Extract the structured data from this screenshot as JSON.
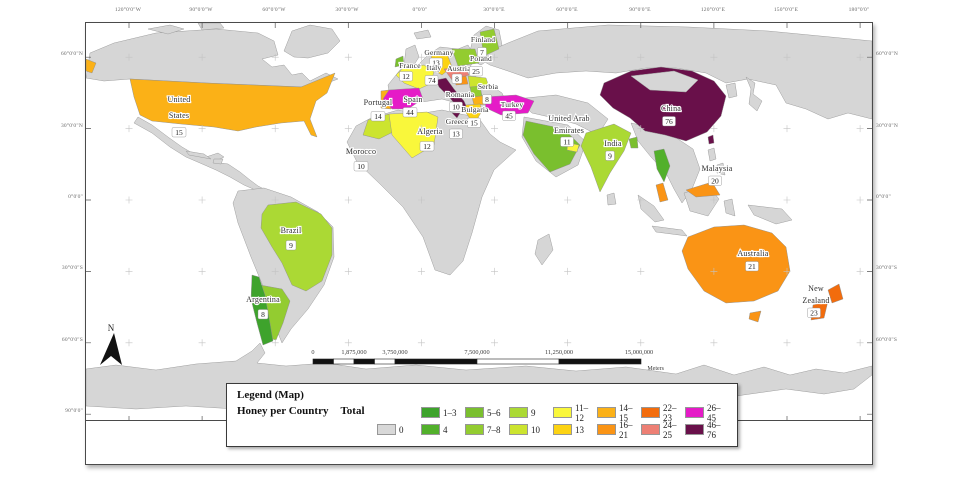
{
  "colors": {
    "land": "#D6D6D6",
    "ocean": "#FFFFFF"
  },
  "north_arrow": {
    "label": "N"
  },
  "scalebar": {
    "labels": [
      "0",
      "1,875,000",
      "3,750,000",
      "7,500,000",
      "11,250,000",
      "15,000,000"
    ],
    "unit": "Meters"
  },
  "legend": {
    "title": "Legend (Map)",
    "layer": "Honey per Country",
    "field": "Total",
    "classes": [
      {
        "label": "0",
        "color": "#D8D8D8"
      },
      {
        "label": "1–3",
        "color": "#3EA32C"
      },
      {
        "label": "4",
        "color": "#52B02B"
      },
      {
        "label": "5–6",
        "color": "#7ABF2E"
      },
      {
        "label": "7–8",
        "color": "#93CC30"
      },
      {
        "label": "9",
        "color": "#ABD934"
      },
      {
        "label": "10",
        "color": "#CCE42F"
      },
      {
        "label": "11–12",
        "color": "#F9F73B"
      },
      {
        "label": "13",
        "color": "#FCD313"
      },
      {
        "label": "14–15",
        "color": "#FBB117"
      },
      {
        "label": "16–21",
        "color": "#FA9415"
      },
      {
        "label": "22–23",
        "color": "#F26C0D"
      },
      {
        "label": "24–25",
        "color": "#ED7F74"
      },
      {
        "label": "26–45",
        "color": "#E51BC7"
      },
      {
        "label": "46–76",
        "color": "#69104A"
      }
    ]
  },
  "graticule": {
    "top": [
      "120°0'0\"W",
      "90°0'0\"W",
      "60°0'0\"W",
      "30°0'0\"W",
      "0°0'0\"",
      "30°0'0\"E",
      "60°0'0\"E",
      "90°0'0\"E",
      "120°0'0\"E",
      "150°0'0\"E",
      "180°0'0\""
    ],
    "bottom": [
      "120°0'0\"W",
      "90°0'0\"W",
      "150°0'0\"E",
      "180°0'0\""
    ],
    "left": [
      "60°0'0\"N",
      "30°0'0\"N",
      "0°0'0\"",
      "30°0'0\"S",
      "60°0'0\"S",
      "90°0'0\""
    ],
    "right": [
      "60°0'0\"N",
      "30°0'0\"N",
      "0°0'0\"",
      "30°0'0\"S",
      "60°0'0\"S"
    ]
  },
  "countries": [
    {
      "name": "United States",
      "lines": [
        "United",
        "States"
      ],
      "value": "15"
    },
    {
      "name": "Brazil",
      "lines": [
        "Brazil"
      ],
      "value": "9"
    },
    {
      "name": "Argentina",
      "lines": [
        "Argentina"
      ],
      "value": "8"
    },
    {
      "name": "Portugal",
      "lines": [
        "Portugal"
      ],
      "value": "14"
    },
    {
      "name": "Spain",
      "lines": [
        "Spain"
      ],
      "value": "44"
    },
    {
      "name": "Morocco",
      "lines": [
        "Morocco"
      ],
      "value": "10"
    },
    {
      "name": "Algeria",
      "lines": [
        "Algeria"
      ],
      "value": "12"
    },
    {
      "name": "France",
      "lines": [
        "France"
      ],
      "value": "12"
    },
    {
      "name": "Germany",
      "lines": [
        "Germany"
      ],
      "value": "13"
    },
    {
      "name": "Italy",
      "lines": [
        "Italy"
      ],
      "value": "74"
    },
    {
      "name": "Austria",
      "lines": [
        "Austria"
      ],
      "value": "8"
    },
    {
      "name": "Poland",
      "lines": [
        "Poland"
      ],
      "value": "25"
    },
    {
      "name": "Finland",
      "lines": [
        "Finland"
      ],
      "value": "7"
    },
    {
      "name": "Serbia",
      "lines": [
        "Serbia"
      ],
      "value": "8"
    },
    {
      "name": "Romania",
      "lines": [
        "Romania"
      ],
      "value": "10"
    },
    {
      "name": "Bulgaria",
      "lines": [
        "Bulgaria"
      ],
      "value": "15"
    },
    {
      "name": "Greece",
      "lines": [
        "Greece"
      ],
      "value": "13"
    },
    {
      "name": "Turkey",
      "lines": [
        "Turkey"
      ],
      "value": "45"
    },
    {
      "name": "United Arab Emirates",
      "lines": [
        "United Arab",
        "Emirates"
      ],
      "value": "11"
    },
    {
      "name": "India",
      "lines": [
        "India"
      ],
      "value": "9"
    },
    {
      "name": "China",
      "lines": [
        "China"
      ],
      "value": "76"
    },
    {
      "name": "Malaysia",
      "lines": [
        "Malaysia"
      ],
      "value": "20"
    },
    {
      "name": "Australia",
      "lines": [
        "Australia"
      ],
      "value": "21"
    },
    {
      "name": "New Zealand",
      "lines": [
        "New",
        "Zealand"
      ],
      "value": "23"
    }
  ]
}
